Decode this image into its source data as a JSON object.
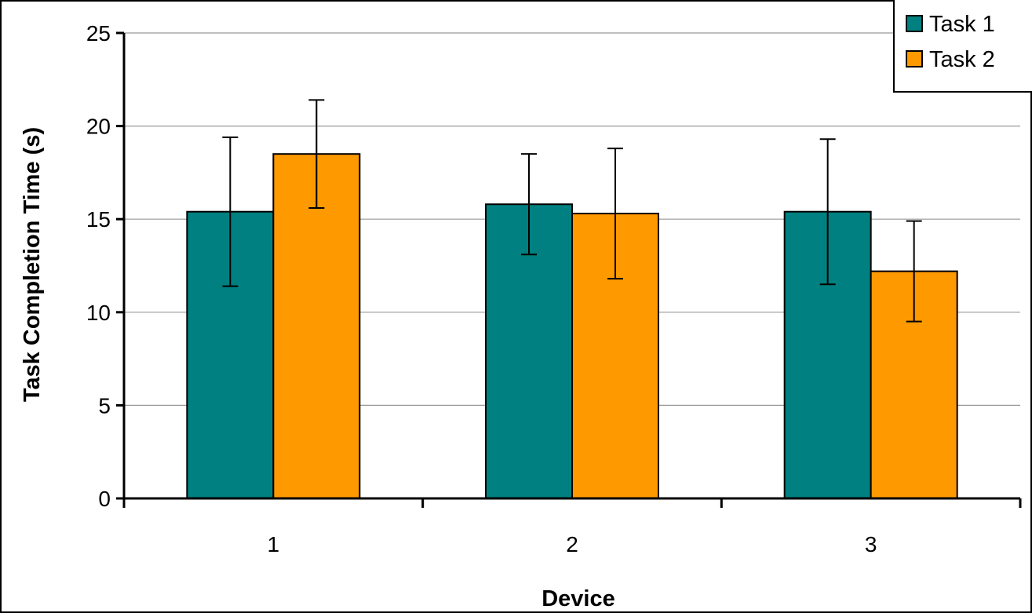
{
  "chart_data": {
    "type": "bar",
    "title": "",
    "xlabel": "Device",
    "ylabel": "Task Completion Time (s)",
    "categories": [
      "1",
      "2",
      "3"
    ],
    "ylim": [
      0,
      25
    ],
    "yticks": [
      "0",
      "5",
      "10",
      "15",
      "20",
      "25"
    ],
    "grid": true,
    "legend": "top-right",
    "series": [
      {
        "name": "Task 1",
        "color": "#008080",
        "values": [
          15.4,
          15.8,
          15.4
        ],
        "error": [
          4.0,
          2.7,
          3.9
        ]
      },
      {
        "name": "Task 2",
        "color": "#FF9900",
        "values": [
          18.5,
          15.3,
          12.2
        ],
        "error": [
          2.9,
          3.5,
          2.7
        ]
      }
    ]
  }
}
